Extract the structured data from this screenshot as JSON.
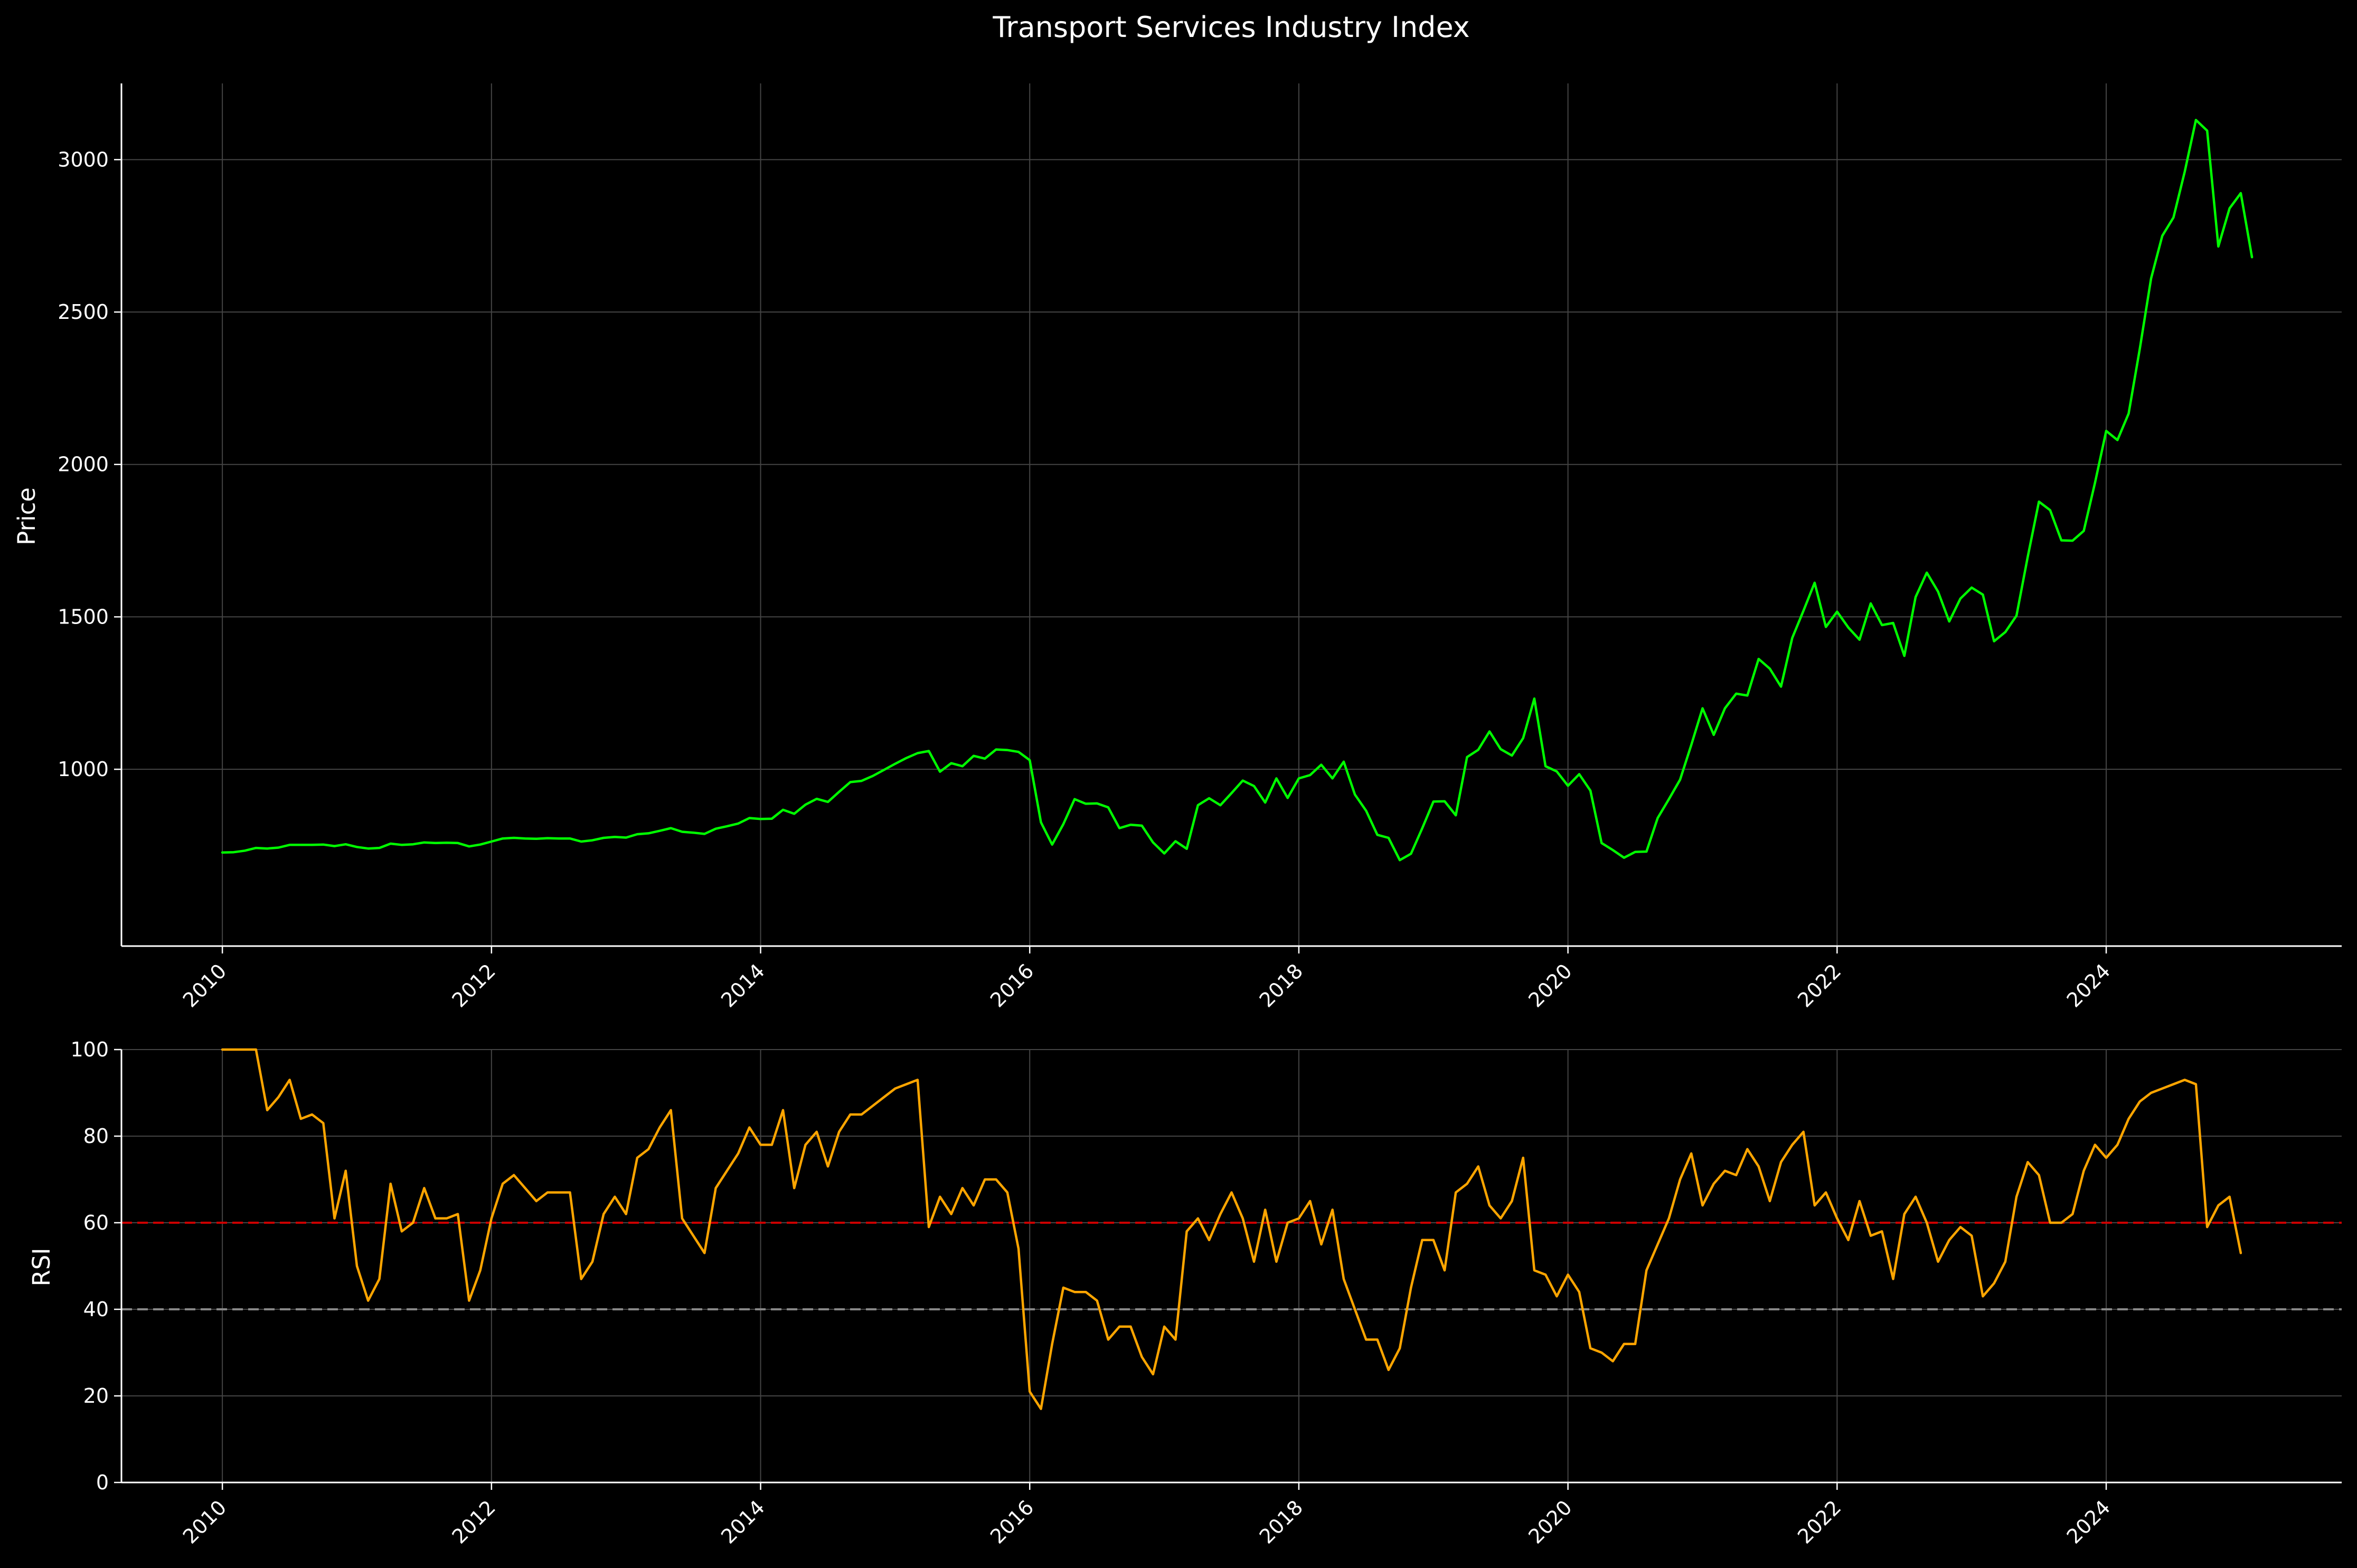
{
  "title": "Transport Services Industry Index",
  "colors": {
    "background": "#000000",
    "axis": "#ffffff",
    "grid": "#444444",
    "price_line": "#00ff00",
    "rsi_line": "#ffa500",
    "overbought_line": "#cc0000",
    "oversold_line": "#888888"
  },
  "chart_data": [
    {
      "type": "line",
      "ylabel": "Price",
      "xlim": [
        "2009-04-01",
        "2025-10-01"
      ],
      "ylim": [
        420,
        3250
      ],
      "yticks": [
        1000,
        1500,
        2000,
        2500,
        3000
      ],
      "xticks": [
        {
          "date": "2010-01-01",
          "label": "2010"
        },
        {
          "date": "2012-01-01",
          "label": "2012"
        },
        {
          "date": "2014-01-01",
          "label": "2014"
        },
        {
          "date": "2016-01-01",
          "label": "2016"
        },
        {
          "date": "2018-01-01",
          "label": "2018"
        },
        {
          "date": "2020-01-01",
          "label": "2020"
        },
        {
          "date": "2022-01-01",
          "label": "2022"
        },
        {
          "date": "2024-01-01",
          "label": "2024"
        }
      ],
      "grid": true,
      "x_start": "2010-01",
      "x_frequency": "monthly",
      "series": [
        {
          "values": [
            727,
            728,
            733,
            742,
            740,
            743,
            752,
            752,
            752,
            753,
            748,
            754,
            745,
            740,
            742,
            756,
            752,
            754,
            760,
            758,
            759,
            758,
            747,
            753,
            763,
            773,
            775,
            773,
            772,
            774,
            773,
            773,
            763,
            767,
            775,
            778,
            776,
            787,
            790,
            798,
            807,
            795,
            792,
            788,
            805,
            813,
            822,
            840,
            837,
            838,
            867,
            854,
            884,
            903,
            893,
            926,
            958,
            962,
            978,
            998,
            1018,
            1037,
            1053,
            1060,
            992,
            1020,
            1010,
            1044,
            1035,
            1065,
            1063,
            1057,
            1030,
            826,
            753,
            820,
            902,
            887,
            888,
            875,
            807,
            818,
            815,
            760,
            724,
            764,
            739,
            882,
            905,
            882,
            922,
            963,
            945,
            891,
            970,
            906,
            970,
            981,
            1015,
            970,
            1025,
            917,
            864,
            785,
            775,
            702,
            723,
            806,
            894,
            895,
            849,
            1040,
            1064,
            1124,
            1066,
            1045,
            1102,
            1232,
            1010,
            993,
            946,
            984,
            930,
            758,
            735,
            710,
            729,
            730,
            840,
            902,
            966,
            1080,
            1200,
            1113,
            1200,
            1248,
            1242,
            1362,
            1330,
            1271,
            1431,
            1520,
            1612,
            1467,
            1517,
            1465,
            1425,
            1544,
            1473,
            1480,
            1372,
            1565,
            1645,
            1583,
            1485,
            1560,
            1596,
            1573,
            1420,
            1450,
            1504,
            1697,
            1878,
            1850,
            1751,
            1750,
            1782,
            1940,
            2110,
            2080,
            2167,
            2380,
            2610,
            2750,
            2810,
            2960,
            3130,
            3095,
            2715,
            2840,
            2890,
            2680
          ]
        }
      ]
    },
    {
      "type": "line",
      "ylabel": "RSI",
      "xlim": [
        "2009-04-01",
        "2025-10-01"
      ],
      "ylim": [
        0,
        100
      ],
      "yticks": [
        0,
        20,
        40,
        60,
        80,
        100
      ],
      "xticks": [
        {
          "date": "2010-01-01",
          "label": "2010"
        },
        {
          "date": "2012-01-01",
          "label": "2012"
        },
        {
          "date": "2014-01-01",
          "label": "2014"
        },
        {
          "date": "2016-01-01",
          "label": "2016"
        },
        {
          "date": "2018-01-01",
          "label": "2018"
        },
        {
          "date": "2020-01-01",
          "label": "2020"
        },
        {
          "date": "2022-01-01",
          "label": "2022"
        },
        {
          "date": "2024-01-01",
          "label": "2024"
        }
      ],
      "grid": true,
      "x_start": "2010-01",
      "x_frequency": "monthly",
      "reference_lines": [
        {
          "y": 60,
          "style": "dashed",
          "color": "#cc0000"
        },
        {
          "y": 40,
          "style": "dashed",
          "color": "#888888"
        }
      ],
      "series": [
        {
          "values": [
            100,
            100,
            100,
            100,
            86,
            89,
            93,
            84,
            85,
            83,
            61,
            72,
            50,
            42,
            47,
            69,
            58,
            60,
            68,
            61,
            61,
            62,
            42,
            49,
            61,
            69,
            71,
            68,
            65,
            67,
            67,
            67,
            47,
            51,
            62,
            66,
            62,
            75,
            77,
            82,
            86,
            61,
            57,
            53,
            68,
            72,
            76,
            82,
            78,
            78,
            86,
            68,
            78,
            81,
            73,
            81,
            85,
            85,
            87,
            89,
            91,
            92,
            93,
            59,
            66,
            62,
            68,
            64,
            70,
            70,
            67,
            54,
            21,
            17,
            32,
            45,
            44,
            44,
            42,
            33,
            36,
            36,
            29,
            25,
            36,
            33,
            58,
            61,
            56,
            62,
            67,
            61,
            51,
            63,
            51,
            60,
            61,
            65,
            55,
            63,
            47,
            40,
            33,
            33,
            26,
            31,
            45,
            56,
            56,
            49,
            67,
            69,
            73,
            64,
            61,
            65,
            75,
            49,
            48,
            43,
            48,
            44,
            31,
            30,
            28,
            32,
            32,
            49,
            55,
            61,
            70,
            76,
            64,
            69,
            72,
            71,
            77,
            73,
            65,
            74,
            78,
            81,
            64,
            67,
            61,
            56,
            65,
            57,
            58,
            47,
            62,
            66,
            60,
            51,
            56,
            59,
            57,
            43,
            46,
            51,
            66,
            74,
            71,
            60,
            60,
            62,
            72,
            78,
            75,
            78,
            84,
            88,
            90,
            91,
            92,
            93,
            92,
            59,
            64,
            66,
            53
          ]
        }
      ]
    }
  ]
}
